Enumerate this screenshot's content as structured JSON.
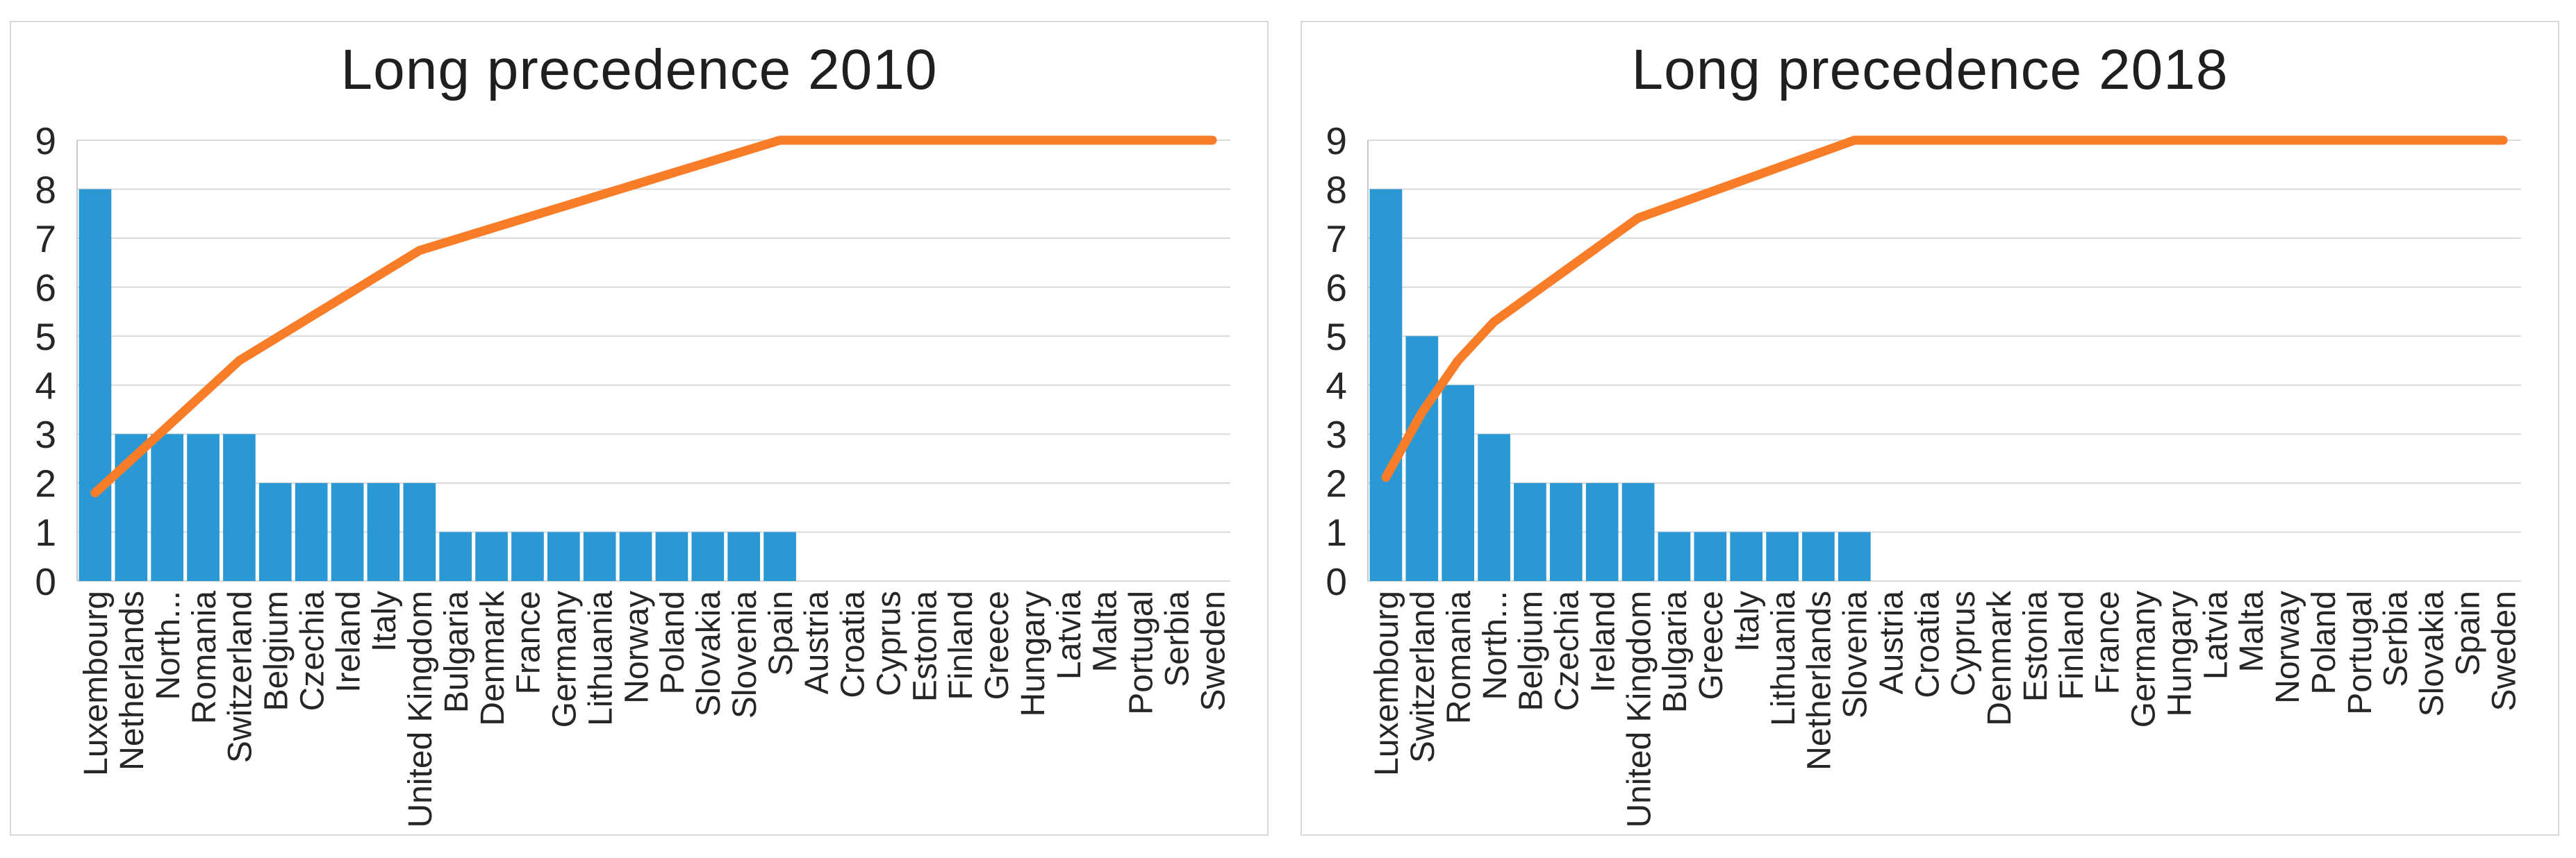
{
  "colors": {
    "bar": "#2b98d6",
    "line": "#f97d28",
    "grid": "#d9d9d9",
    "axis": "#c8c8c8",
    "text": "#262626",
    "title_text": "#1f1f1f",
    "panel_border": "#d9d9d9",
    "background": "#ffffff"
  },
  "chart_data": [
    {
      "type": "bar+line",
      "title": "Long precedence 2010",
      "xlabel": "",
      "ylabel": "",
      "ylim": [
        0,
        9
      ],
      "yticks": [
        0,
        1,
        2,
        3,
        4,
        5,
        6,
        7,
        8,
        9
      ],
      "grid": true,
      "legend": "none",
      "categories": [
        "Luxembourg",
        "Netherlands",
        "North...",
        "Romania",
        "Switzerland",
        "Belgium",
        "Czechia",
        "Ireland",
        "Italy",
        "United Kingdom",
        "Bulgaria",
        "Denmark",
        "France",
        "Germany",
        "Lithuania",
        "Norway",
        "Poland",
        "Slovakia",
        "Slovenia",
        "Spain",
        "Austria",
        "Croatia",
        "Cyprus",
        "Estonia",
        "Finland",
        "Greece",
        "Hungary",
        "Latvia",
        "Malta",
        "Portugal",
        "Serbia",
        "Sweden"
      ],
      "series": [
        {
          "name": "bar-series",
          "type": "bar",
          "values": [
            8,
            3,
            3,
            3,
            3,
            2,
            2,
            2,
            2,
            2,
            1,
            1,
            1,
            1,
            1,
            1,
            1,
            1,
            1,
            1,
            0,
            0,
            0,
            0,
            0,
            0,
            0,
            0,
            0,
            0,
            0,
            0
          ]
        },
        {
          "name": "cumulative-line-series",
          "type": "line",
          "values": [
            1.8,
            2.475,
            3.15,
            3.825,
            4.5,
            4.95,
            5.4,
            5.85,
            6.3,
            6.75,
            6.975,
            7.2,
            7.425,
            7.65,
            7.875,
            8.1,
            8.325,
            8.55,
            8.775,
            9,
            9,
            9,
            9,
            9,
            9,
            9,
            9,
            9,
            9,
            9,
            9,
            9
          ]
        }
      ]
    },
    {
      "type": "bar+line",
      "title": "Long precedence 2018",
      "xlabel": "",
      "ylabel": "",
      "ylim": [
        0,
        9
      ],
      "yticks": [
        0,
        1,
        2,
        3,
        4,
        5,
        6,
        7,
        8,
        9
      ],
      "grid": true,
      "legend": "none",
      "categories": [
        "Luxembourg",
        "Switzerland",
        "Romania",
        "North...",
        "Belgium",
        "Czechia",
        "Ireland",
        "United Kingdom",
        "Bulgaria",
        "Greece",
        "Italy",
        "Lithuania",
        "Netherlands",
        "Slovenia",
        "Austria",
        "Croatia",
        "Cyprus",
        "Denmark",
        "Estonia",
        "Finland",
        "France",
        "Germany",
        "Hungary",
        "Latvia",
        "Malta",
        "Norway",
        "Poland",
        "Portugal",
        "Serbia",
        "Slovakia",
        "Spain",
        "Sweden"
      ],
      "series": [
        {
          "name": "bar-series",
          "type": "bar",
          "values": [
            8,
            5,
            4,
            3,
            2,
            2,
            2,
            2,
            1,
            1,
            1,
            1,
            1,
            1,
            0,
            0,
            0,
            0,
            0,
            0,
            0,
            0,
            0,
            0,
            0,
            0,
            0,
            0,
            0,
            0,
            0,
            0
          ]
        },
        {
          "name": "cumulative-line-series",
          "type": "line",
          "values": [
            2.118,
            3.441,
            4.5,
            5.294,
            5.824,
            6.353,
            6.882,
            7.412,
            7.676,
            7.941,
            8.206,
            8.471,
            8.735,
            9,
            9,
            9,
            9,
            9,
            9,
            9,
            9,
            9,
            9,
            9,
            9,
            9,
            9,
            9,
            9,
            9,
            9,
            9
          ]
        }
      ]
    }
  ]
}
